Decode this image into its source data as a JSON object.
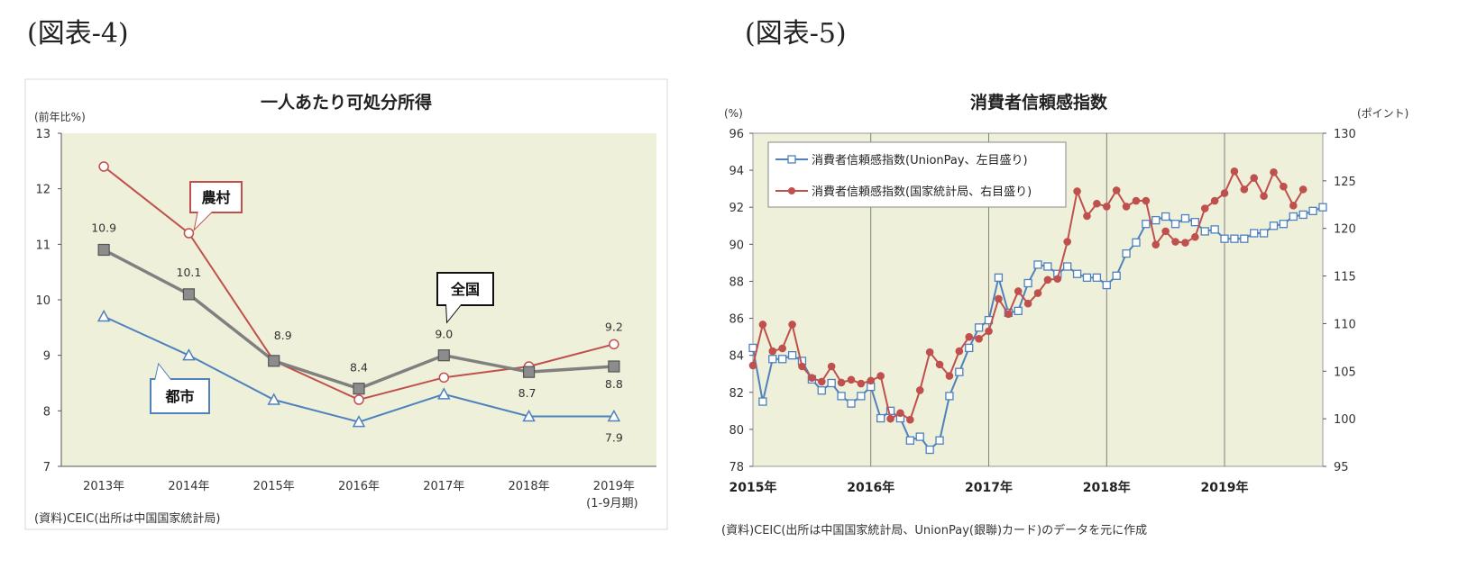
{
  "figures": {
    "fig4_label": "(図表-4)",
    "fig5_label": "(図表-5)"
  },
  "colors": {
    "plot_bg_left": "#eef0da",
    "plot_bg_right": "#eef0da",
    "rural": "#c0504d",
    "national": "#808080",
    "urban": "#4f81bd",
    "unionpay": "#4f81bd",
    "nbs": "#c0504d"
  },
  "chart_data": [
    {
      "id": "fig4",
      "type": "line",
      "title": "一人あたり可処分所得",
      "ylabel": "(前年比%)",
      "ylim": [
        7,
        13
      ],
      "yticks": [
        "7",
        "8",
        "9",
        "10",
        "11",
        "12",
        "13"
      ],
      "categories": [
        "2013年",
        "2014年",
        "2015年",
        "2016年",
        "2017年",
        "2018年",
        "2019年"
      ],
      "last_category_note": "(1-9月期)",
      "series": [
        {
          "name": "農村",
          "values": [
            12.4,
            11.2,
            8.9,
            8.2,
            8.6,
            8.8,
            9.2
          ]
        },
        {
          "name": "全国",
          "values": [
            10.9,
            10.1,
            8.9,
            8.4,
            9.0,
            8.7,
            8.8
          ]
        },
        {
          "name": "都市",
          "values": [
            9.7,
            9.0,
            8.2,
            7.8,
            8.3,
            7.9,
            7.9
          ]
        }
      ],
      "data_labels": {
        "全国": [
          "10.9",
          "10.1",
          "8.9",
          "8.4",
          "9.0",
          "8.7",
          "8.8"
        ],
        "農村_last": "9.2",
        "都市_last": "7.9"
      },
      "callouts": {
        "rural": "農村",
        "national": "全国",
        "urban": "都市"
      },
      "source": "(資料)CEIC(出所は中国国家統計局)"
    },
    {
      "id": "fig5",
      "type": "line",
      "title": "消費者信頼感指数",
      "ylabel_left": "(%)",
      "ylabel_right": "(ポイント)",
      "ylim_left": [
        78,
        96
      ],
      "yticks_left": [
        "78",
        "80",
        "82",
        "84",
        "86",
        "88",
        "90",
        "92",
        "94",
        "96"
      ],
      "ylim_right": [
        95,
        130
      ],
      "yticks_right": [
        "95",
        "100",
        "105",
        "110",
        "115",
        "120",
        "125",
        "130"
      ],
      "x_start": "2015-01",
      "x_year_labels": [
        "2015年",
        "2016年",
        "2017年",
        "2018年",
        "2019年"
      ],
      "series": [
        {
          "name": "消費者信頼感指数(UnionPay、左目盛り)",
          "axis": "left",
          "values": [
            84.4,
            81.5,
            83.8,
            83.8,
            84.0,
            83.7,
            82.7,
            82.1,
            82.5,
            81.8,
            81.4,
            81.8,
            82.3,
            80.6,
            81.0,
            80.6,
            79.4,
            79.6,
            78.9,
            79.4,
            81.8,
            83.1,
            84.4,
            85.5,
            85.9,
            88.2,
            86.3,
            86.4,
            87.9,
            88.9,
            88.8,
            88.4,
            88.8,
            88.4,
            88.2,
            88.2,
            87.8,
            88.3,
            89.5,
            90.1,
            91.1,
            91.3,
            91.5,
            91.1,
            91.4,
            91.2,
            90.7,
            90.8,
            90.3,
            90.3,
            90.3,
            90.6,
            90.6,
            91.0,
            91.1,
            91.5,
            91.6,
            91.8,
            92.0
          ]
        },
        {
          "name": "消費者信頼感指数(国家統計局、右目盛り)",
          "axis": "right",
          "values": [
            105.6,
            109.9,
            107.1,
            107.4,
            109.9,
            105.5,
            104.3,
            103.9,
            105.5,
            103.8,
            104.1,
            103.7,
            104.0,
            104.5,
            100.0,
            100.6,
            99.9,
            103.0,
            107.0,
            105.7,
            104.5,
            107.1,
            108.6,
            108.4,
            109.2,
            112.6,
            111.0,
            113.4,
            112.1,
            113.2,
            114.6,
            114.7,
            118.6,
            123.9,
            121.3,
            122.6,
            122.3,
            124.0,
            122.3,
            122.9,
            122.9,
            118.3,
            119.7,
            118.6,
            118.5,
            119.1,
            122.1,
            122.9,
            123.7,
            126.0,
            124.1,
            125.3,
            123.4,
            125.9,
            124.4,
            122.4,
            124.1
          ]
        }
      ],
      "source": "(資料)CEIC(出所は中国国家統計局、UnionPay(銀聯)カード)のデータを元に作成"
    }
  ]
}
